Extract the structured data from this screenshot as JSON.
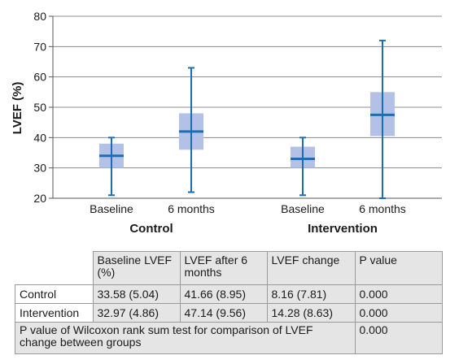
{
  "chart_data": {
    "type": "boxplot",
    "ylabel": "LVEF (%)",
    "ylim": [
      20,
      80
    ],
    "yticks": [
      20,
      30,
      40,
      50,
      60,
      70,
      80
    ],
    "grid": true,
    "groups": [
      {
        "name": "Control",
        "boxes": [
          {
            "label": "Baseline",
            "min": 21,
            "q1": 30,
            "median": 34,
            "q3": 38,
            "max": 40
          },
          {
            "label": "6 months",
            "min": 22,
            "q1": 36,
            "median": 42,
            "q3": 48,
            "max": 63
          }
        ]
      },
      {
        "name": "Intervention",
        "boxes": [
          {
            "label": "Baseline",
            "min": 21,
            "q1": 30,
            "median": 33,
            "q3": 37,
            "max": 40
          },
          {
            "label": "6 months",
            "min": 20,
            "q1": 40.5,
            "median": 47.5,
            "q3": 55,
            "max": 72
          }
        ]
      }
    ],
    "colors": {
      "box": "#b3c1e6",
      "whisker": "#1f6cb0",
      "axis": "#555555",
      "grid": "#8c8c8c"
    }
  },
  "table": {
    "headers": [
      "Baseline LVEF (%)",
      "LVEF after 6 months",
      "LVEF change",
      "P value"
    ],
    "rows": [
      {
        "label": "Control",
        "cells": [
          "33.58 (5.04)",
          "41.66 (8.95)",
          "8.16 (7.81)",
          "0.000"
        ]
      },
      {
        "label": "Intervention",
        "cells": [
          "32.97 (4.86)",
          "47.14 (9.56)",
          "14.28 (8.63)",
          "0.000"
        ]
      }
    ],
    "footer": {
      "label": "P value of Wilcoxon rank sum test for comparison of LVEF change between groups",
      "value": "0.000"
    }
  }
}
